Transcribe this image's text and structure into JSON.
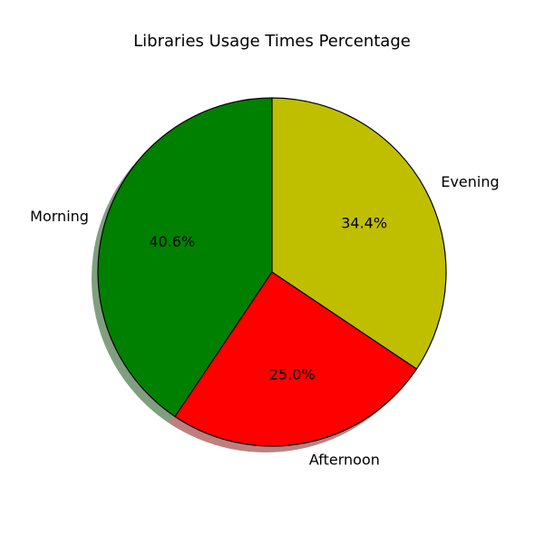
{
  "chart_data": {
    "type": "pie",
    "title": "Libraries Usage Times Percentage",
    "slices": [
      {
        "label": "Morning",
        "value": 40.6,
        "pct_label": "40.6%",
        "color": "#008000"
      },
      {
        "label": "Afternoon",
        "value": 25.0,
        "pct_label": "25.0%",
        "color": "#ff0000"
      },
      {
        "label": "Evening",
        "value": 34.4,
        "pct_label": "34.4%",
        "color": "#bfbf00"
      }
    ],
    "start_angle_deg": 90,
    "direction": "counterclockwise",
    "shadow": true,
    "edge_color": "#000000"
  }
}
